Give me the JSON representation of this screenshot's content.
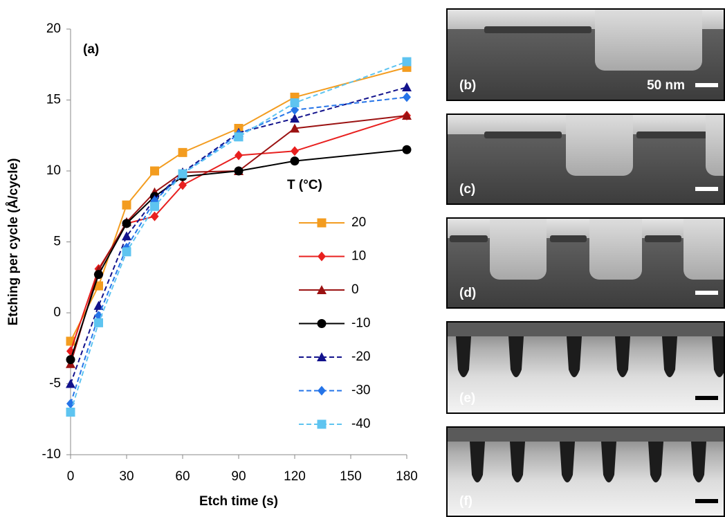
{
  "chart_data": {
    "type": "line",
    "annotation": "(a)",
    "x_label": "Etch time (s)",
    "y_label": "Etching per cycle (Å/cycle)",
    "legend_title": "T (°C)",
    "x": [
      0,
      15,
      30,
      45,
      60,
      90,
      120,
      180
    ],
    "xlim": [
      0,
      180
    ],
    "xticks": [
      0,
      30,
      60,
      90,
      120,
      150,
      180
    ],
    "ylim": [
      -10,
      20
    ],
    "yticks": [
      -10,
      -5,
      0,
      5,
      10,
      15,
      20
    ],
    "grid": false,
    "series": [
      {
        "name": "20",
        "color": "#f39c1f",
        "marker": "square",
        "dashed": false,
        "values": [
          -2.0,
          1.9,
          7.6,
          10.0,
          11.3,
          13.0,
          15.2,
          17.3
        ]
      },
      {
        "name": "10",
        "color": "#e8201f",
        "marker": "diamond",
        "dashed": false,
        "values": [
          -2.7,
          3.1,
          6.3,
          6.8,
          9.0,
          11.1,
          11.4,
          13.9
        ]
      },
      {
        "name": "0",
        "color": "#9b1212",
        "marker": "triangle",
        "dashed": false,
        "values": [
          -3.6,
          3.0,
          6.4,
          8.5,
          9.9,
          10.0,
          13.0,
          13.9
        ]
      },
      {
        "name": "-10",
        "color": "#000000",
        "marker": "circle",
        "dashed": false,
        "values": [
          -3.3,
          2.7,
          6.3,
          8.2,
          9.6,
          10.0,
          10.7,
          11.5
        ]
      },
      {
        "name": "-20",
        "color": "#12128c",
        "marker": "triangle",
        "dashed": true,
        "values": [
          -5.0,
          0.5,
          5.4,
          8.0,
          9.9,
          12.7,
          13.7,
          15.9
        ]
      },
      {
        "name": "-30",
        "color": "#2574e8",
        "marker": "diamond",
        "dashed": true,
        "values": [
          -6.4,
          -0.2,
          4.6,
          7.9,
          9.8,
          12.6,
          14.3,
          15.2
        ]
      },
      {
        "name": "-40",
        "color": "#5ec4f0",
        "marker": "square",
        "dashed": true,
        "values": [
          -7.0,
          -0.7,
          4.3,
          7.5,
          9.8,
          12.4,
          14.8,
          17.7
        ]
      }
    ]
  },
  "panels": [
    {
      "label": "(b)"
    },
    {
      "label": "(c)"
    },
    {
      "label": "(d)"
    },
    {
      "label": "(e)"
    },
    {
      "label": "(f)"
    }
  ],
  "scale_label": "50 nm"
}
